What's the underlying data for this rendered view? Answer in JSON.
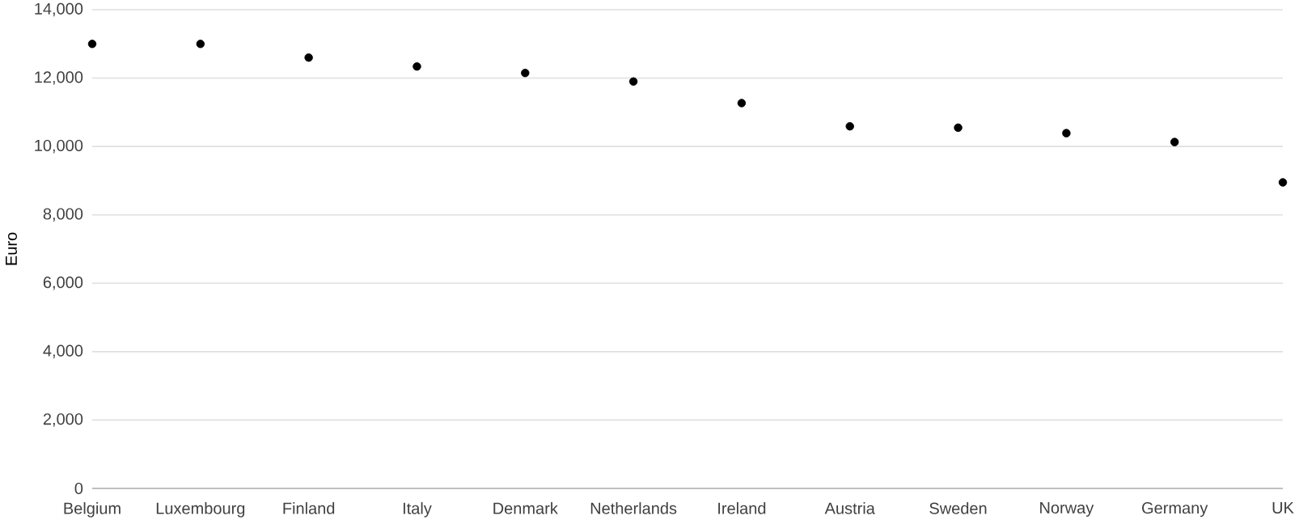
{
  "chart_data": {
    "type": "scatter",
    "ylabel": "Euro",
    "categories": [
      "Belgium",
      "Luxembourg",
      "Finland",
      "Italy",
      "Denmark",
      "Netherlands",
      "Ireland",
      "Austria",
      "Sweden",
      "Norway",
      "Germany",
      "UK"
    ],
    "values": [
      13000,
      13000,
      12600,
      12340,
      12150,
      11900,
      11270,
      10590,
      10550,
      10390,
      10130,
      8950
    ],
    "color": "#000000",
    "marker": "circle",
    "ylim": [
      0,
      14000
    ],
    "yticks": [
      {
        "value": 0,
        "label": "0"
      },
      {
        "value": 2000,
        "label": "2,000"
      },
      {
        "value": 4000,
        "label": "4,000"
      },
      {
        "value": 6000,
        "label": "6,000"
      },
      {
        "value": 8000,
        "label": "8,000"
      },
      {
        "value": 10000,
        "label": "10,000"
      },
      {
        "value": 12000,
        "label": "12,000"
      },
      {
        "value": 14000,
        "label": "14,000"
      }
    ],
    "grid": "y"
  }
}
